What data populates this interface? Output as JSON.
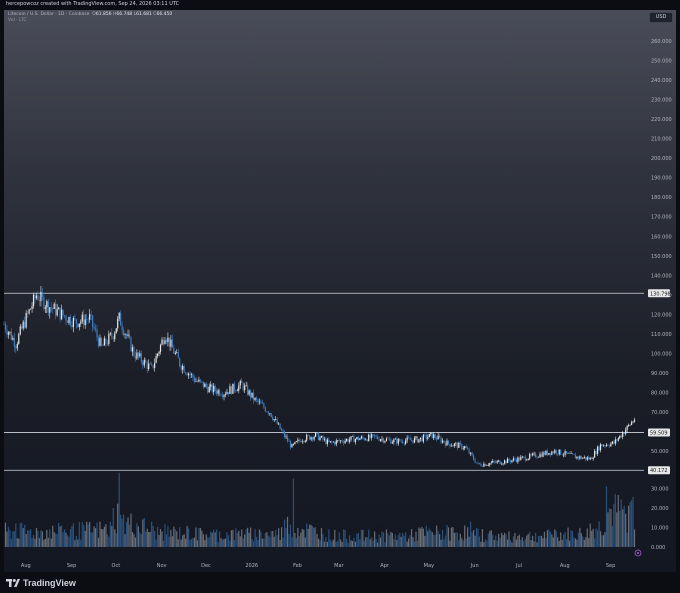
{
  "header": {
    "caption": "hercepowcoz created with TradingView.com, Sep 24, 2026 03:11 UTC"
  },
  "legend": {
    "symbol": "Litecoin / U.S. Dollar · 1D · Coinbase",
    "open_label": "O",
    "open": "61.856",
    "high_label": "H",
    "high": "66.748",
    "low_label": "L",
    "low": "61.681",
    "close_label": "C",
    "close": "66.450",
    "volume_label": "Vol · LTC"
  },
  "currency_badge": "USD",
  "footer": {
    "brand": "TradingView"
  },
  "price_tags": [
    {
      "label": "130.798",
      "value": 130.798
    },
    {
      "label": "59.509",
      "value": 59.509
    },
    {
      "label": "40.172",
      "value": 40.172
    }
  ],
  "chart_data": [
    {
      "type": "candlestick",
      "title": "",
      "y_axis_ticks": [
        "40.000",
        "50.000",
        "60.000",
        "70.000",
        "80.000",
        "90.000",
        "100.000",
        "110.000",
        "120.000",
        "130.000",
        "140.000",
        "150.000",
        "160.000",
        "170.000",
        "180.000",
        "190.000",
        "200.000",
        "210.000",
        "220.000",
        "230.000",
        "240.000",
        "250.000",
        "260.000"
      ],
      "x_axis_ticks": [
        "Aug",
        "Sep",
        "Oct",
        "Nov",
        "Dec",
        "2026",
        "Feb",
        "Mar",
        "Apr",
        "May",
        "Jun",
        "Jul",
        "Aug",
        "Sep"
      ],
      "ylim": [
        40,
        265
      ],
      "grid": false,
      "horizontal_levels": [
        130.798,
        59.509,
        40.172
      ],
      "series": [
        {
          "x": [
            "2025-07-24",
            "2025-08-01",
            "2025-08-08",
            "2025-08-15",
            "2025-08-22",
            "2025-09-01",
            "2025-09-10",
            "2025-09-20",
            "2025-09-28",
            "2025-10-06",
            "2025-10-10",
            "2025-10-20",
            "2025-11-01",
            "2025-11-10",
            "2025-11-20",
            "2025-12-01",
            "2025-12-10",
            "2025-12-20",
            "2026-01-01",
            "2026-01-10",
            "2026-01-20",
            "2026-01-28",
            "2026-02-04",
            "2026-02-10",
            "2026-02-20",
            "2026-03-01",
            "2026-03-15",
            "2026-04-01",
            "2026-04-15",
            "2026-05-01",
            "2026-05-10",
            "2026-05-20",
            "2026-06-01",
            "2026-06-10",
            "2026-06-20",
            "2026-07-01",
            "2026-07-15",
            "2026-08-01",
            "2026-08-15",
            "2026-08-25",
            "2026-09-01",
            "2026-09-10",
            "2026-09-18",
            "2026-09-24"
          ],
          "close": [
            115,
            105,
            118,
            130,
            125,
            120,
            116,
            118,
            103,
            110,
            118,
            100,
            92,
            110,
            95,
            86,
            82,
            80,
            84,
            76,
            70,
            60,
            52,
            56,
            58,
            54,
            56,
            57,
            55,
            56,
            58,
            54,
            52,
            43,
            44,
            45,
            47,
            50,
            47,
            46,
            53,
            54,
            61,
            66.45
          ]
        }
      ]
    },
    {
      "type": "bar",
      "title": "",
      "y_axis_ticks": [
        "0.000",
        "10.000",
        "20.000",
        "30.000"
      ],
      "ylim": [
        0,
        40
      ],
      "series": [
        {
          "name": "Vol · LTC",
          "x": [
            "2025-08-01",
            "2025-09-01",
            "2025-10-06",
            "2025-10-10",
            "2025-11-01",
            "2025-12-01",
            "2026-01-01",
            "2026-01-30",
            "2026-02-05",
            "2026-03-01",
            "2026-04-01",
            "2026-05-01",
            "2026-06-05",
            "2026-07-01",
            "2026-08-01",
            "2026-08-25",
            "2026-09-05",
            "2026-09-22"
          ],
          "values": [
            12,
            11,
            20,
            38,
            13,
            10,
            9,
            14,
            35,
            9,
            8,
            10,
            13,
            8,
            9,
            12,
            31,
            24
          ]
        }
      ]
    }
  ]
}
